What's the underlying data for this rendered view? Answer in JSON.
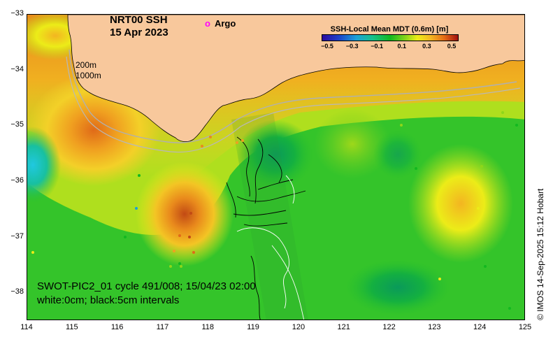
{
  "title": {
    "line1": "NRT00 SSH",
    "line2": "15 Apr 2023"
  },
  "argo_legend": {
    "symbol": "o",
    "label": "Argo",
    "color": "#ff00ff"
  },
  "depth_labels": {
    "shallow": "200m",
    "deep": "1000m"
  },
  "colorbar": {
    "title": "SSH-Local Mean MDT (0.6m) [m]",
    "ticks": [
      "−0.5",
      "−0.3",
      "−0.1",
      "0.1",
      "0.3",
      "0.5"
    ],
    "tick_values": [
      -0.5,
      -0.3,
      -0.1,
      0.1,
      0.3,
      0.5
    ],
    "range": [
      -0.5,
      0.5
    ]
  },
  "axes": {
    "x_ticks": [
      "114",
      "115",
      "116",
      "117",
      "118",
      "119",
      "120",
      "121",
      "122",
      "123",
      "124",
      "125"
    ],
    "y_ticks": [
      "−33",
      "−34",
      "−35",
      "−36",
      "−37",
      "−38"
    ],
    "x_range": [
      114,
      125
    ],
    "y_range": [
      -38.5,
      -33
    ]
  },
  "swot_caption": {
    "line1": "SWOT-PIC2_01 cycle 491/008; 15/04/23 02:00",
    "line2": "white:0cm; black:5cm intervals"
  },
  "credit": "© IMOS 14-Sep-2025 15:12 Hobart",
  "colors": {
    "land": "#f8c89c",
    "ocean_base": "#28c02c",
    "contour_isobath": "#b0b0b0",
    "argo": "#ff00ff"
  }
}
